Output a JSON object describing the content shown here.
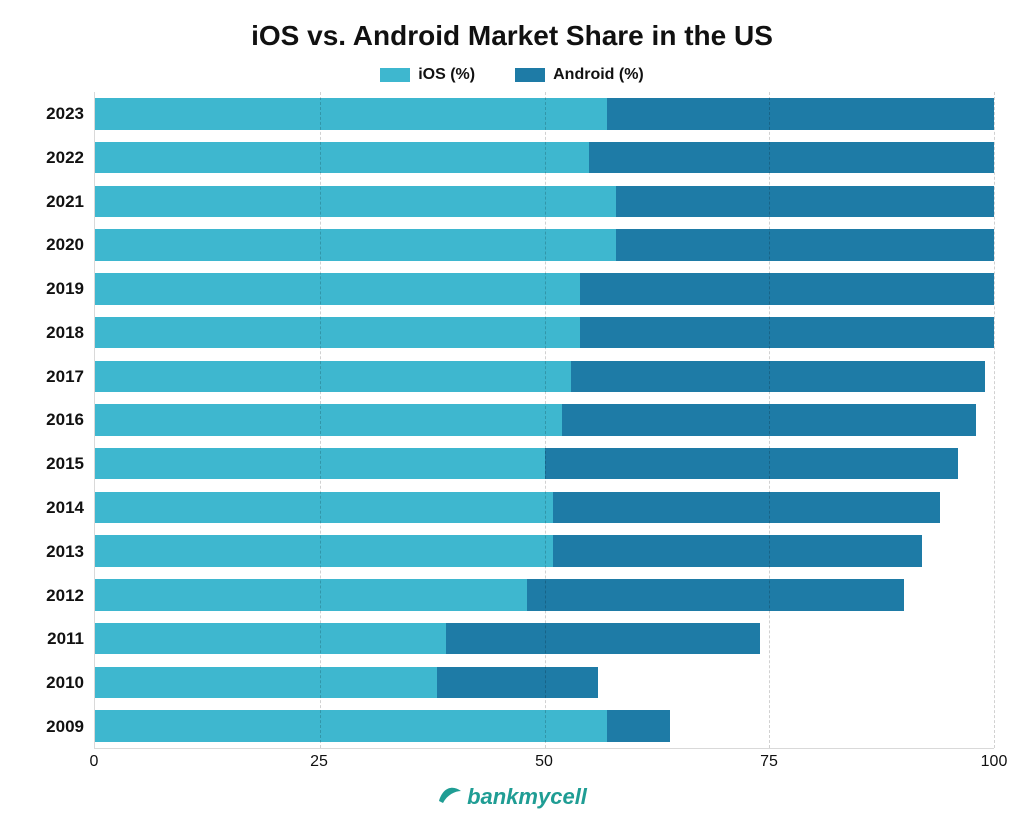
{
  "chart": {
    "type": "stacked-horizontal-bar",
    "title": "iOS vs. Android Market Share in the US",
    "title_fontsize": 28,
    "title_color": "#111111",
    "background_color": "#ffffff",
    "legend": {
      "items": [
        {
          "label": "iOS (%)",
          "color": "#3eb7cf"
        },
        {
          "label": "Android (%)",
          "color": "#1e7ba6"
        }
      ],
      "fontsize": 16
    },
    "series_colors": {
      "ios": "#3eb7cf",
      "android": "#1e7ba6"
    },
    "xaxis": {
      "min": 0,
      "max": 100,
      "ticks": [
        0,
        25,
        50,
        75,
        100
      ],
      "grid_color": "rgba(0,0,0,0.18)",
      "grid_dash": true,
      "label_fontsize": 16
    },
    "yaxis": {
      "label_fontsize": 17,
      "label_fontweight": 700
    },
    "bar_height_ratio": 0.72,
    "rows": [
      {
        "year": "2023",
        "ios": 57,
        "android": 43
      },
      {
        "year": "2022",
        "ios": 55,
        "android": 45
      },
      {
        "year": "2021",
        "ios": 58,
        "android": 42
      },
      {
        "year": "2020",
        "ios": 58,
        "android": 42
      },
      {
        "year": "2019",
        "ios": 54,
        "android": 46
      },
      {
        "year": "2018",
        "ios": 54,
        "android": 46
      },
      {
        "year": "2017",
        "ios": 53,
        "android": 46
      },
      {
        "year": "2016",
        "ios": 52,
        "android": 46
      },
      {
        "year": "2015",
        "ios": 50,
        "android": 46
      },
      {
        "year": "2014",
        "ios": 51,
        "android": 43
      },
      {
        "year": "2013",
        "ios": 51,
        "android": 41
      },
      {
        "year": "2012",
        "ios": 48,
        "android": 42
      },
      {
        "year": "2011",
        "ios": 39,
        "android": 35
      },
      {
        "year": "2010",
        "ios": 38,
        "android": 18
      },
      {
        "year": "2009",
        "ios": 57,
        "android": 7
      }
    ]
  },
  "brand": {
    "text_prefix": "bank",
    "text_suffix": "mycell",
    "color": "#1f9d94",
    "fontsize": 22
  }
}
